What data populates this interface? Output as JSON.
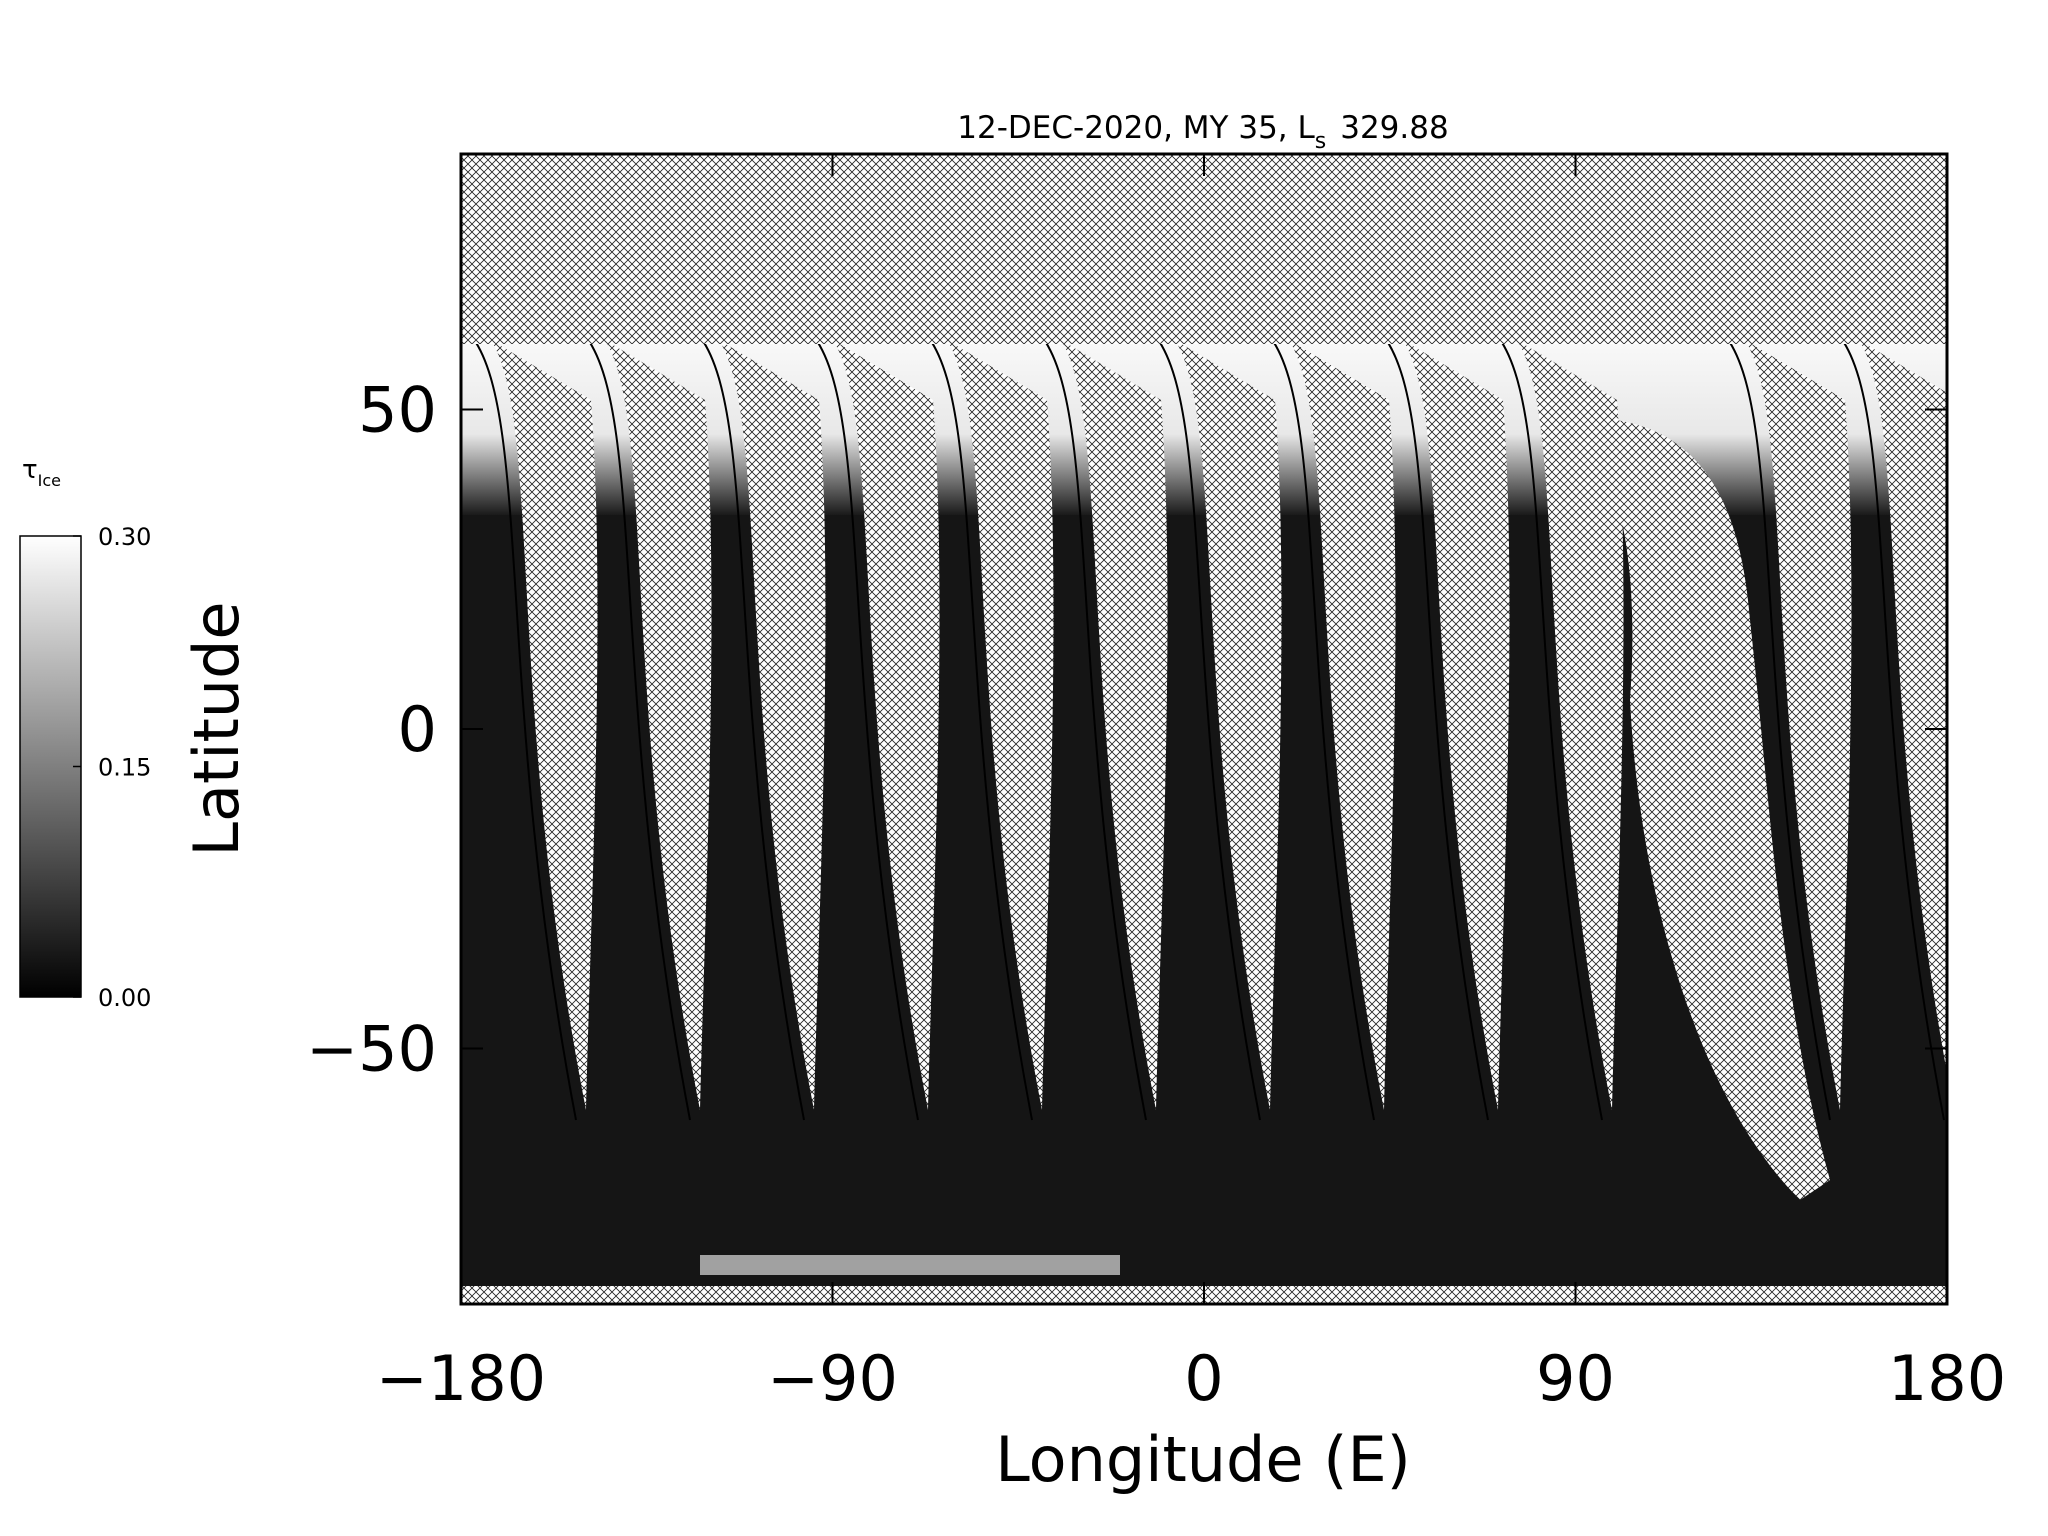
{
  "chart_data": {
    "type": "map",
    "title_parts": [
      "12-DEC-2020, MY 35,  L",
      "s",
      "329.88"
    ],
    "xlabel": "Longitude (E)",
    "ylabel": "Latitude",
    "xlim": [
      -180,
      180
    ],
    "ylim": [
      -90,
      90
    ],
    "xticks": [
      {
        "value": -180,
        "label": "−180"
      },
      {
        "value": -90,
        "label": "−90"
      },
      0,
      90,
      180
    ],
    "yticks": [
      {
        "value": -50,
        "label": "−50"
      },
      0,
      50
    ],
    "colorbar": {
      "label_parts": [
        "τ",
        "Ice"
      ],
      "lim": [
        0,
        0.3
      ],
      "ticks": [
        {
          "value": 0,
          "label": "0.00"
        },
        {
          "value": 0.15,
          "label": "0.15"
        },
        {
          "value": 0.3,
          "label": "0.30"
        }
      ],
      "colors": [
        "#000000",
        "#ffffff"
      ]
    }
  }
}
